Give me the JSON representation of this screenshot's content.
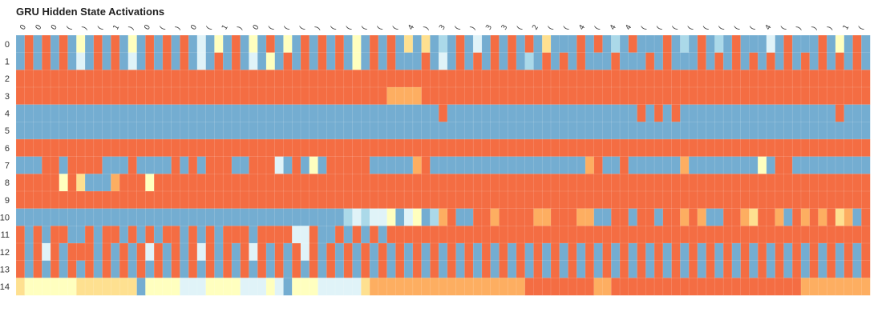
{
  "chart_data": {
    "type": "heatmap",
    "title": "GRU Hidden State Activations",
    "rows": [
      "0",
      "1",
      "2",
      "3",
      "4",
      "5",
      "6",
      "7",
      "8",
      "9",
      "10",
      "11",
      "12",
      "13",
      "14"
    ],
    "x_tick_labels": [
      "0",
      "0",
      "0",
      "(",
      ")",
      "(",
      "1",
      ")",
      "0",
      "(",
      ")",
      "0",
      "(",
      "1",
      ")",
      "0",
      "(",
      "(",
      "(",
      ")",
      "(",
      "(",
      "(",
      "(",
      "(",
      "4",
      ")",
      "3",
      "(",
      ")",
      "3",
      "3",
      "(",
      "2",
      "(",
      "(",
      "4",
      "(",
      "4",
      "4",
      "(",
      "(",
      "(",
      "(",
      "(",
      "(",
      "(",
      "(",
      "4",
      "(",
      ")",
      ")",
      ")",
      "1",
      "("
    ],
    "column_count": 99,
    "color_scale": {
      "0": "#74add1",
      "1": "#abd9e9",
      "2": "#e0f3f8",
      "3": "#ffffbf",
      "4": "#fee090",
      "5": "#fdae61",
      "6": "#f46d43"
    },
    "activation_levels": [
      "0606060306060306060602030603060306060603060604040106020606060400060601060006010601060002060006030602",
      "0606060206060206060602060602030606060603060600060206060606010606060006000606000606060606060606060602",
      "6666666666666666666666666666666666666666666666666666666666666666666666666666666666666666666666666666666",
      "6666666666666666666666666666666666666666666555566666666666666666666666666666666666666666666666666666666",
      "0000000000000000000000000000000000000000000000000600000000000000000000006060600000000000000000060000000",
      "0000000000000000000000000000000000000000000000000000000000000000000000000000000000000000000000000000000",
      "6666666666666666666666666666666666666666666666666666666666666666666666666666666666666666666666666666666",
      "0006606666000600006060666006662060306666600000560000000000000000005600600000050000000030660000000000000",
      "6666636400056663666666666666666666666666666666666666666666666666666666666666666666666666666666666666666",
      "6666666666666666666666666666666666666666666666666666666666666666666666666666666666666666666666666666666",
      "0000000000000000000000000000000000000012122302301560066566665566655006606606656500665466506565645066003",
      "6060660060660606066060606660666622600606060666666666666666666666666666666666666666666666666666666666666",
      "6062606660606062606062606062606062606060606060606060606060606060606060606060606060606060606060606060606",
      "6060606060606060606060606060606060606060606060606060606060606060606060606060606060606060606060606060606",
      "4333333444444403333222333322232033322222455555555555555555566666666556666666666666666666666555555555666"
    ]
  }
}
